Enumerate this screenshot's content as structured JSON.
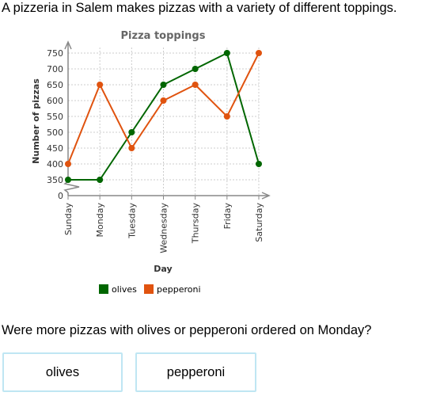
{
  "prompt": "A pizzeria in Salem makes pizzas with a variety of different toppings.",
  "question": "Were more pizzas with olives or pepperoni ordered on Monday?",
  "answers": [
    "olives",
    "pepperoni"
  ],
  "colors": {
    "olives": "#006600",
    "pepperoni": "#e0530f",
    "grid": "#cccccc",
    "axis": "#888888",
    "button_border": "#bfe6f3"
  },
  "chart_data": {
    "type": "line",
    "title": "Pizza toppings",
    "xlabel": "Day",
    "ylabel": "Number of pizzas",
    "categories": [
      "Sunday",
      "Monday",
      "Tuesday",
      "Wednesday",
      "Thursday",
      "Friday",
      "Saturday"
    ],
    "yticks": [
      0,
      350,
      400,
      450,
      500,
      550,
      600,
      650,
      700,
      750
    ],
    "ylim": [
      350,
      750
    ],
    "axis_break": true,
    "grid": true,
    "legend_position": "bottom",
    "series": [
      {
        "name": "olives",
        "color": "#006600",
        "values": [
          350,
          350,
          500,
          650,
          700,
          750,
          400
        ]
      },
      {
        "name": "pepperoni",
        "color": "#e0530f",
        "values": [
          400,
          650,
          450,
          600,
          650,
          550,
          750
        ]
      }
    ]
  }
}
